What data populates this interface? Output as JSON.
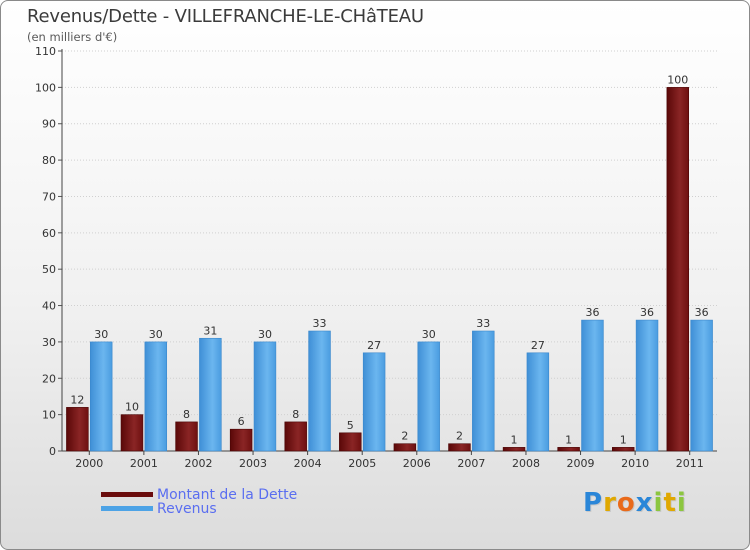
{
  "title": "Revenus/Dette - VILLEFRANCHE-LE-CHâTEAU",
  "subtitle": "(en milliers d'€)",
  "colors": {
    "dette": "#6a0c0c",
    "revenus": "#4da3e6"
  },
  "legend": {
    "dette_label": "Montant de la Dette",
    "revenus_label": "Revenus"
  },
  "logo": {
    "letters": [
      "P",
      "r",
      "o",
      "x",
      "i",
      "t",
      "i"
    ],
    "colors": [
      "#2a86d8",
      "#e0a800",
      "#e96a1a",
      "#2a86d8",
      "#8cc63f",
      "#e0a800",
      "#8cc63f"
    ]
  },
  "chart_data": {
    "type": "bar",
    "title": "Revenus/Dette - VILLEFRANCHE-LE-CHâTEAU",
    "ylabel": "(en milliers d'€)",
    "xlabel": "",
    "ylim": [
      0,
      110
    ],
    "yticks": [
      0,
      10,
      20,
      30,
      40,
      50,
      60,
      70,
      80,
      90,
      100,
      110
    ],
    "grid": true,
    "categories": [
      "2000",
      "2001",
      "2002",
      "2003",
      "2004",
      "2005",
      "2006",
      "2007",
      "2008",
      "2009",
      "2010",
      "2011"
    ],
    "series": [
      {
        "name": "Montant de la Dette",
        "values": [
          12,
          10,
          8,
          6,
          8,
          5,
          2,
          2,
          1,
          1,
          1,
          100
        ]
      },
      {
        "name": "Revenus",
        "values": [
          30,
          30,
          31,
          30,
          33,
          27,
          30,
          33,
          27,
          36,
          36,
          36
        ]
      }
    ]
  }
}
